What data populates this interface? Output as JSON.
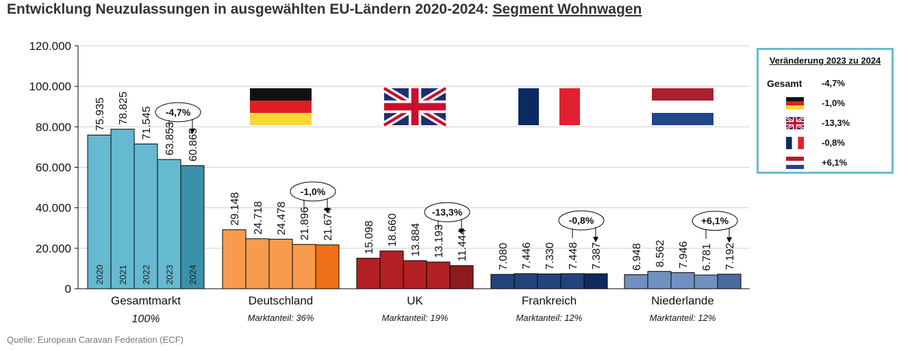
{
  "header": {
    "title_prefix": "Entwicklung Neuzulassungen in ausgewählten EU-Ländern 2020-2024: ",
    "title_segment": "Segment Wohnwagen"
  },
  "footer": {
    "source": "Quelle: European Caravan Federation (ECF)"
  },
  "legend": {
    "title": "Veränderung 2023 zu 2024",
    "rows": [
      {
        "label": "Gesamt",
        "value": "-4,7%",
        "flag": ""
      },
      {
        "label": "",
        "value": "-1,0%",
        "flag": "de"
      },
      {
        "label": "",
        "value": "-13,3%",
        "flag": "uk"
      },
      {
        "label": "",
        "value": "-0,8%",
        "flag": "fr"
      },
      {
        "label": "",
        "value": "+6,1%",
        "flag": "nl"
      }
    ]
  },
  "colors": {
    "gesamt": [
      "#65b9d0",
      "#65b9d0",
      "#65b9d0",
      "#65b9d0",
      "#3a90a8"
    ],
    "de": [
      "#f79b4f",
      "#f79b4f",
      "#f79b4f",
      "#f79b4f",
      "#f07018"
    ],
    "uk": [
      "#b32024",
      "#b32024",
      "#b32024",
      "#b32024",
      "#8e1a1e"
    ],
    "fr": [
      "#22447a",
      "#22447a",
      "#22447a",
      "#22447a",
      "#0e2a5e"
    ],
    "nl": [
      "#7090c0",
      "#7090c0",
      "#7090c0",
      "#7090c0",
      "#4a6aa0"
    ]
  },
  "chart_data": {
    "type": "bar",
    "title": "Entwicklung Neuzulassungen in ausgewählten EU-Ländern 2020-2024: Segment Wohnwagen",
    "years": [
      "2020",
      "2021",
      "2022",
      "2023",
      "2024"
    ],
    "ylim": [
      0,
      120000
    ],
    "yticks": [
      0,
      20000,
      40000,
      60000,
      80000,
      100000,
      120000
    ],
    "ytick_labels": [
      "0",
      "20.000",
      "40.000",
      "60.000",
      "80.000",
      "100.000",
      "120.000"
    ],
    "grid": true,
    "legend_position": "top-right",
    "groups": [
      {
        "key": "gesamt",
        "name": "Gesamtmarkt",
        "sub": "100%",
        "flag": "",
        "values": [
          75935,
          78825,
          71545,
          63853,
          60865
        ],
        "labels": [
          "75.935",
          "78.825",
          "71.545",
          "63.853",
          "60.865"
        ],
        "change": "-4,7%"
      },
      {
        "key": "de",
        "name": "Deutschland",
        "sub": "Marktanteil: 36%",
        "flag": "de",
        "values": [
          29148,
          24718,
          24478,
          21896,
          21674
        ],
        "labels": [
          "29.148",
          "24.718",
          "24.478",
          "21.896",
          "21.674"
        ],
        "change": "-1,0%"
      },
      {
        "key": "uk",
        "name": "UK",
        "sub": "Marktanteil: 19%",
        "flag": "uk",
        "values": [
          15098,
          18660,
          13884,
          13193,
          11444
        ],
        "labels": [
          "15.098",
          "18.660",
          "13.884",
          "13.193",
          "11.444"
        ],
        "change": "-13,3%"
      },
      {
        "key": "fr",
        "name": "Frankreich",
        "sub": "Marktanteil: 12%",
        "flag": "fr",
        "values": [
          7080,
          7446,
          7330,
          7448,
          7387
        ],
        "labels": [
          "7.080",
          "7.446",
          "7.330",
          "7.448",
          "7.387"
        ],
        "change": "-0,8%"
      },
      {
        "key": "nl",
        "name": "Niederlande",
        "sub": "Marktanteil: 12%",
        "flag": "nl",
        "values": [
          6948,
          8562,
          7946,
          6781,
          7192
        ],
        "labels": [
          "6.948",
          "8.562",
          "7.946",
          "6.781",
          "7.192"
        ],
        "change": "+6,1%"
      }
    ]
  }
}
